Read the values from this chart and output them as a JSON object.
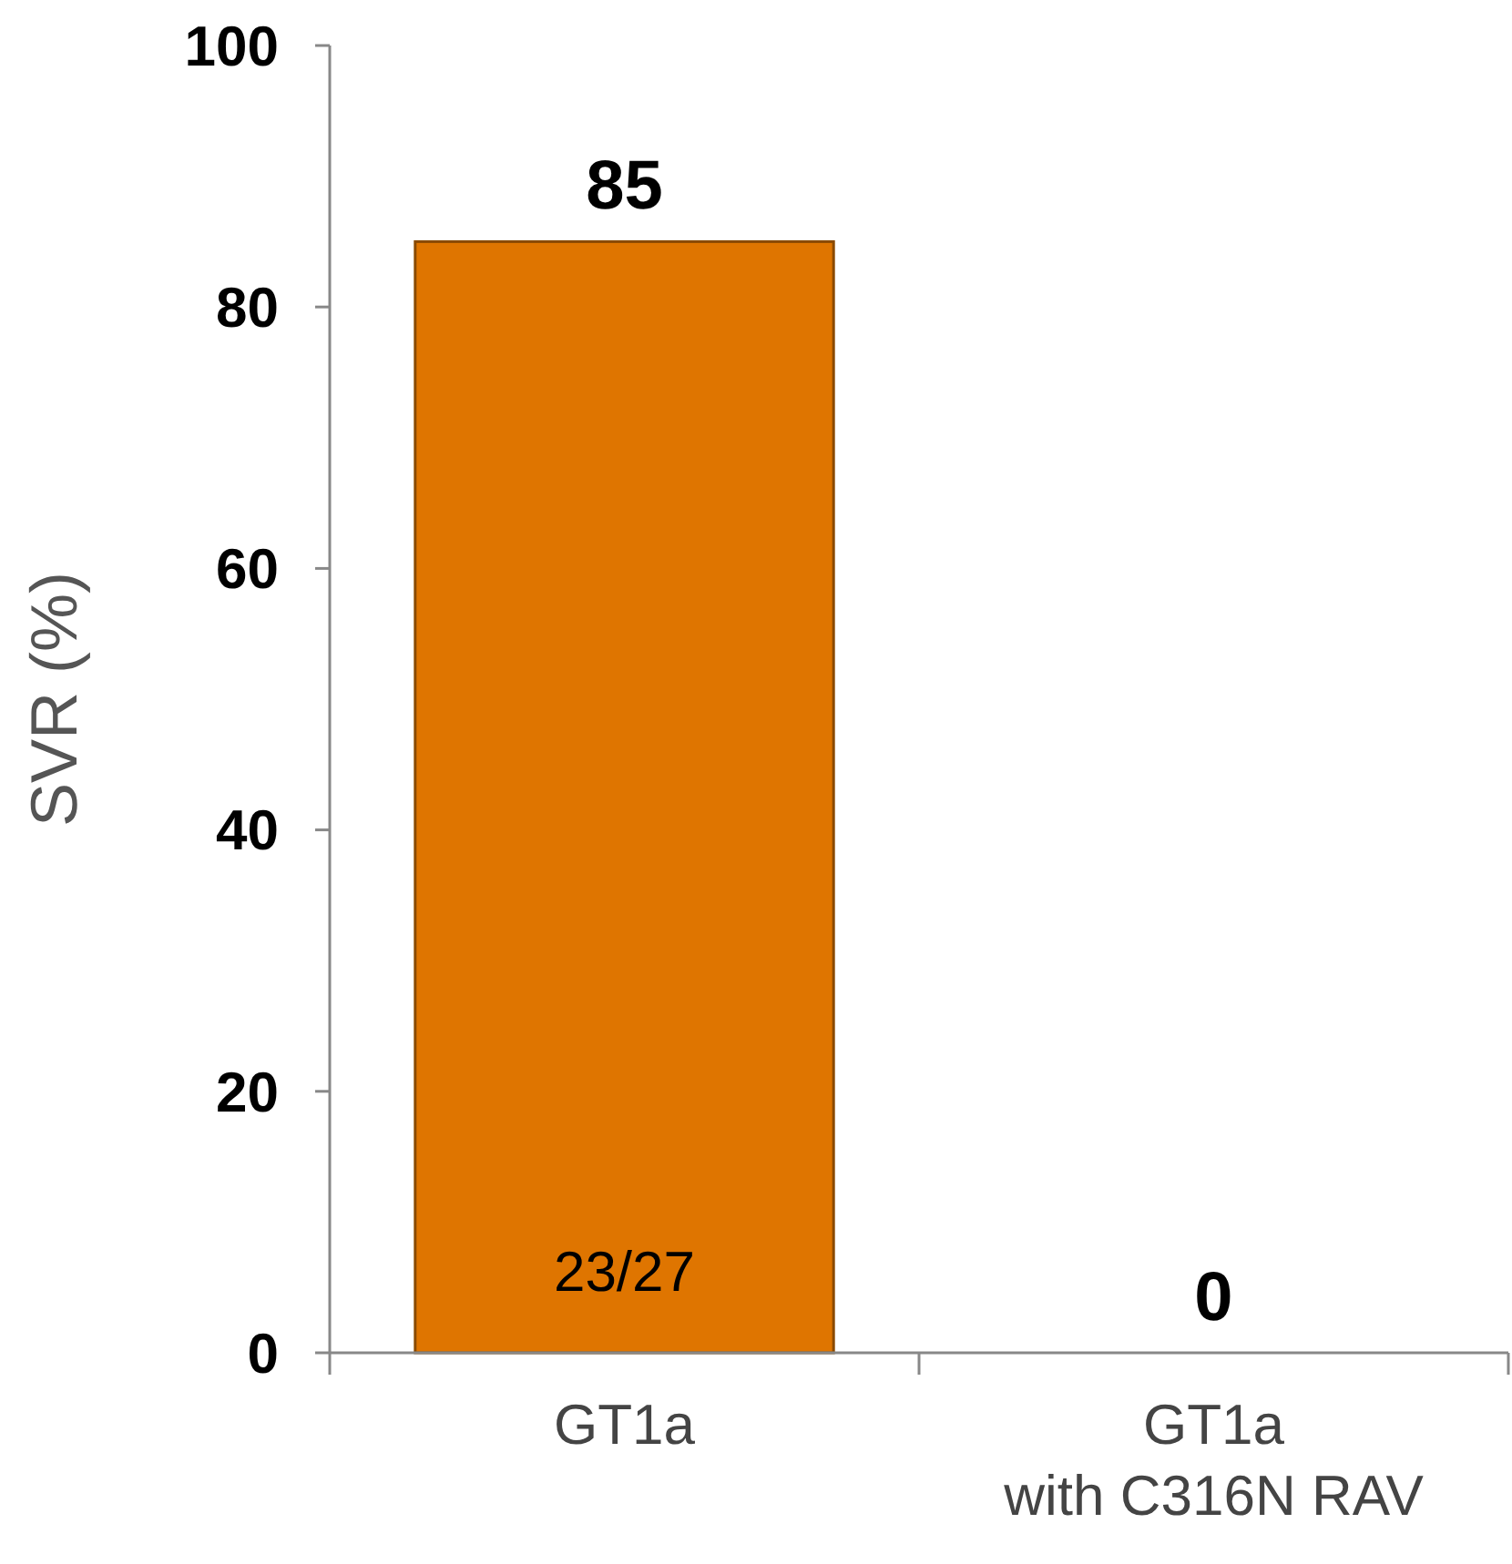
{
  "chart_data": {
    "type": "bar",
    "ylabel": "SVR (%)",
    "categories": [
      "GT1a",
      "GT1a\nwith C316N RAV"
    ],
    "values": [
      85,
      0
    ],
    "color": "#df7500",
    "ylim": [
      0,
      100
    ],
    "yticks": [
      0,
      20,
      40,
      60,
      80,
      100
    ],
    "data_labels": true,
    "grid": false,
    "annotations": [
      "23/27"
    ]
  }
}
